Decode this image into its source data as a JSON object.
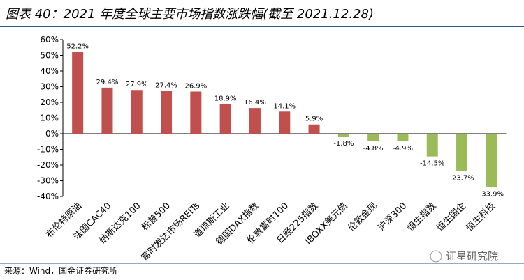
{
  "chart_data": {
    "type": "bar",
    "title": "图表 40：2021 年度全球主要市场指数涨跌幅(截至 2021.12.28)",
    "categories": [
      "布伦特原油",
      "法国CAC40",
      "纳斯达克100",
      "标普500",
      "富时发达市场REITs",
      "道琼斯工业",
      "德国DAX指数",
      "伦敦富时100",
      "日经225指数",
      "IBOXX美元债",
      "伦敦金现",
      "沪深300",
      "恒生指数",
      "恒生国企",
      "恒生科技"
    ],
    "values": [
      52.2,
      29.4,
      27.9,
      27.4,
      26.9,
      18.9,
      16.4,
      14.1,
      5.9,
      -1.8,
      -4.8,
      -4.9,
      -14.5,
      -23.7,
      -33.9
    ],
    "value_labels": [
      "52.2%",
      "29.4%",
      "27.9%",
      "27.4%",
      "26.9%",
      "18.9%",
      "16.4%",
      "14.1%",
      "5.9%",
      "-1.8%",
      "-4.8%",
      "-4.9%",
      "-14.5%",
      "-23.7%",
      "-33.9%"
    ],
    "colors": [
      "#c0504d",
      "#c0504d",
      "#c0504d",
      "#c0504d",
      "#c0504d",
      "#c0504d",
      "#c0504d",
      "#c0504d",
      "#c0504d",
      "#9bbb59",
      "#9bbb59",
      "#9bbb59",
      "#9bbb59",
      "#9bbb59",
      "#9bbb59"
    ],
    "ylim": [
      -40,
      60
    ],
    "yticks": [
      {
        "value": -40,
        "label": "-40%"
      },
      {
        "value": -30,
        "label": "-30%"
      },
      {
        "value": -20,
        "label": "-20%"
      },
      {
        "value": -10,
        "label": "-10%"
      },
      {
        "value": 0,
        "label": "0%"
      },
      {
        "value": 10,
        "label": "10%"
      },
      {
        "value": 20,
        "label": "20%"
      },
      {
        "value": 30,
        "label": "30%"
      },
      {
        "value": 40,
        "label": "40%"
      },
      {
        "value": 50,
        "label": "50%"
      },
      {
        "value": 60,
        "label": "60%"
      }
    ],
    "source": "来源：Wind，国金证券研究所",
    "watermark": "证星研究院"
  }
}
